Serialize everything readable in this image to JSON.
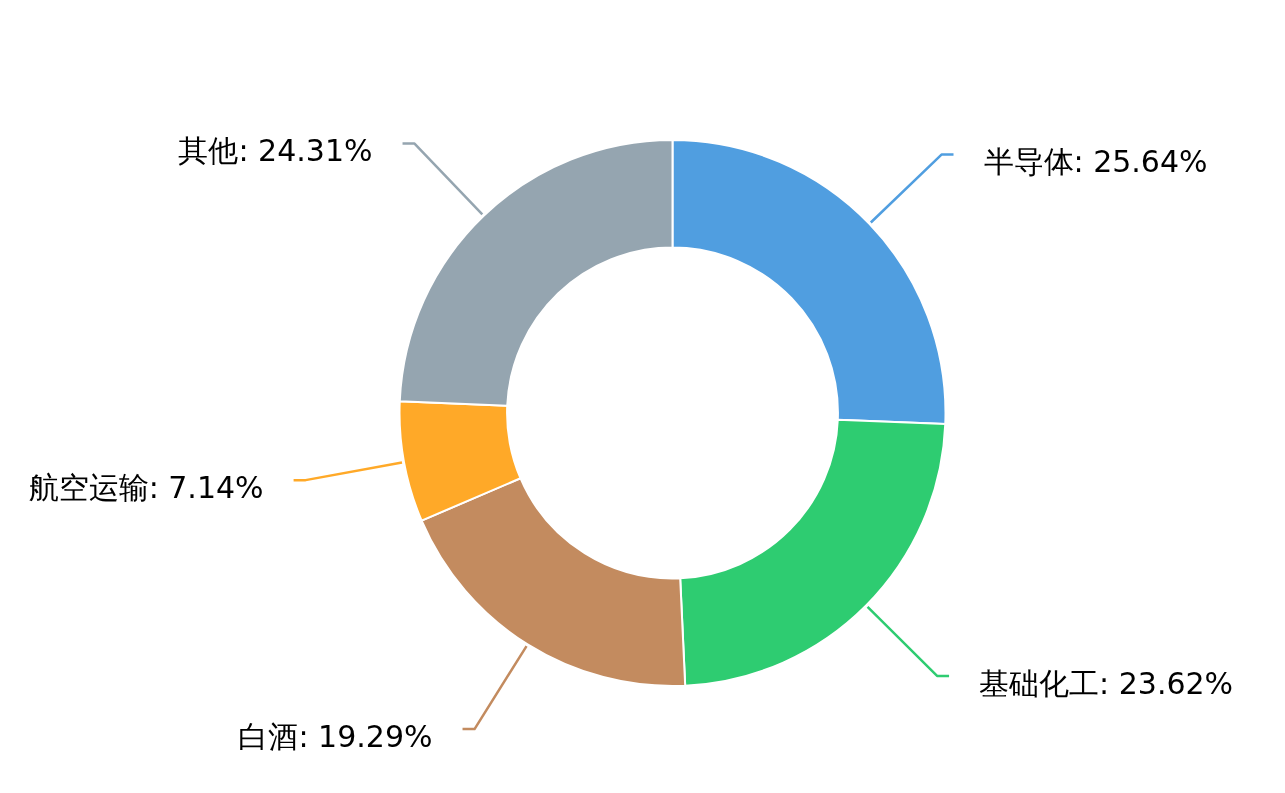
{
  "chart_data": {
    "type": "donut",
    "categories": [
      "半导体",
      "基础化工",
      "白酒",
      "航空运输",
      "其他"
    ],
    "values": [
      25.64,
      23.62,
      19.29,
      7.14,
      24.31
    ],
    "value_labels": [
      "25.64%",
      "23.62%",
      "19.29%",
      "7.14%",
      "24.31%"
    ],
    "colors": [
      "#509ee0",
      "#2ecc71",
      "#c38b5f",
      "#ffa928",
      "#95a5b0"
    ],
    "legend": false
  }
}
